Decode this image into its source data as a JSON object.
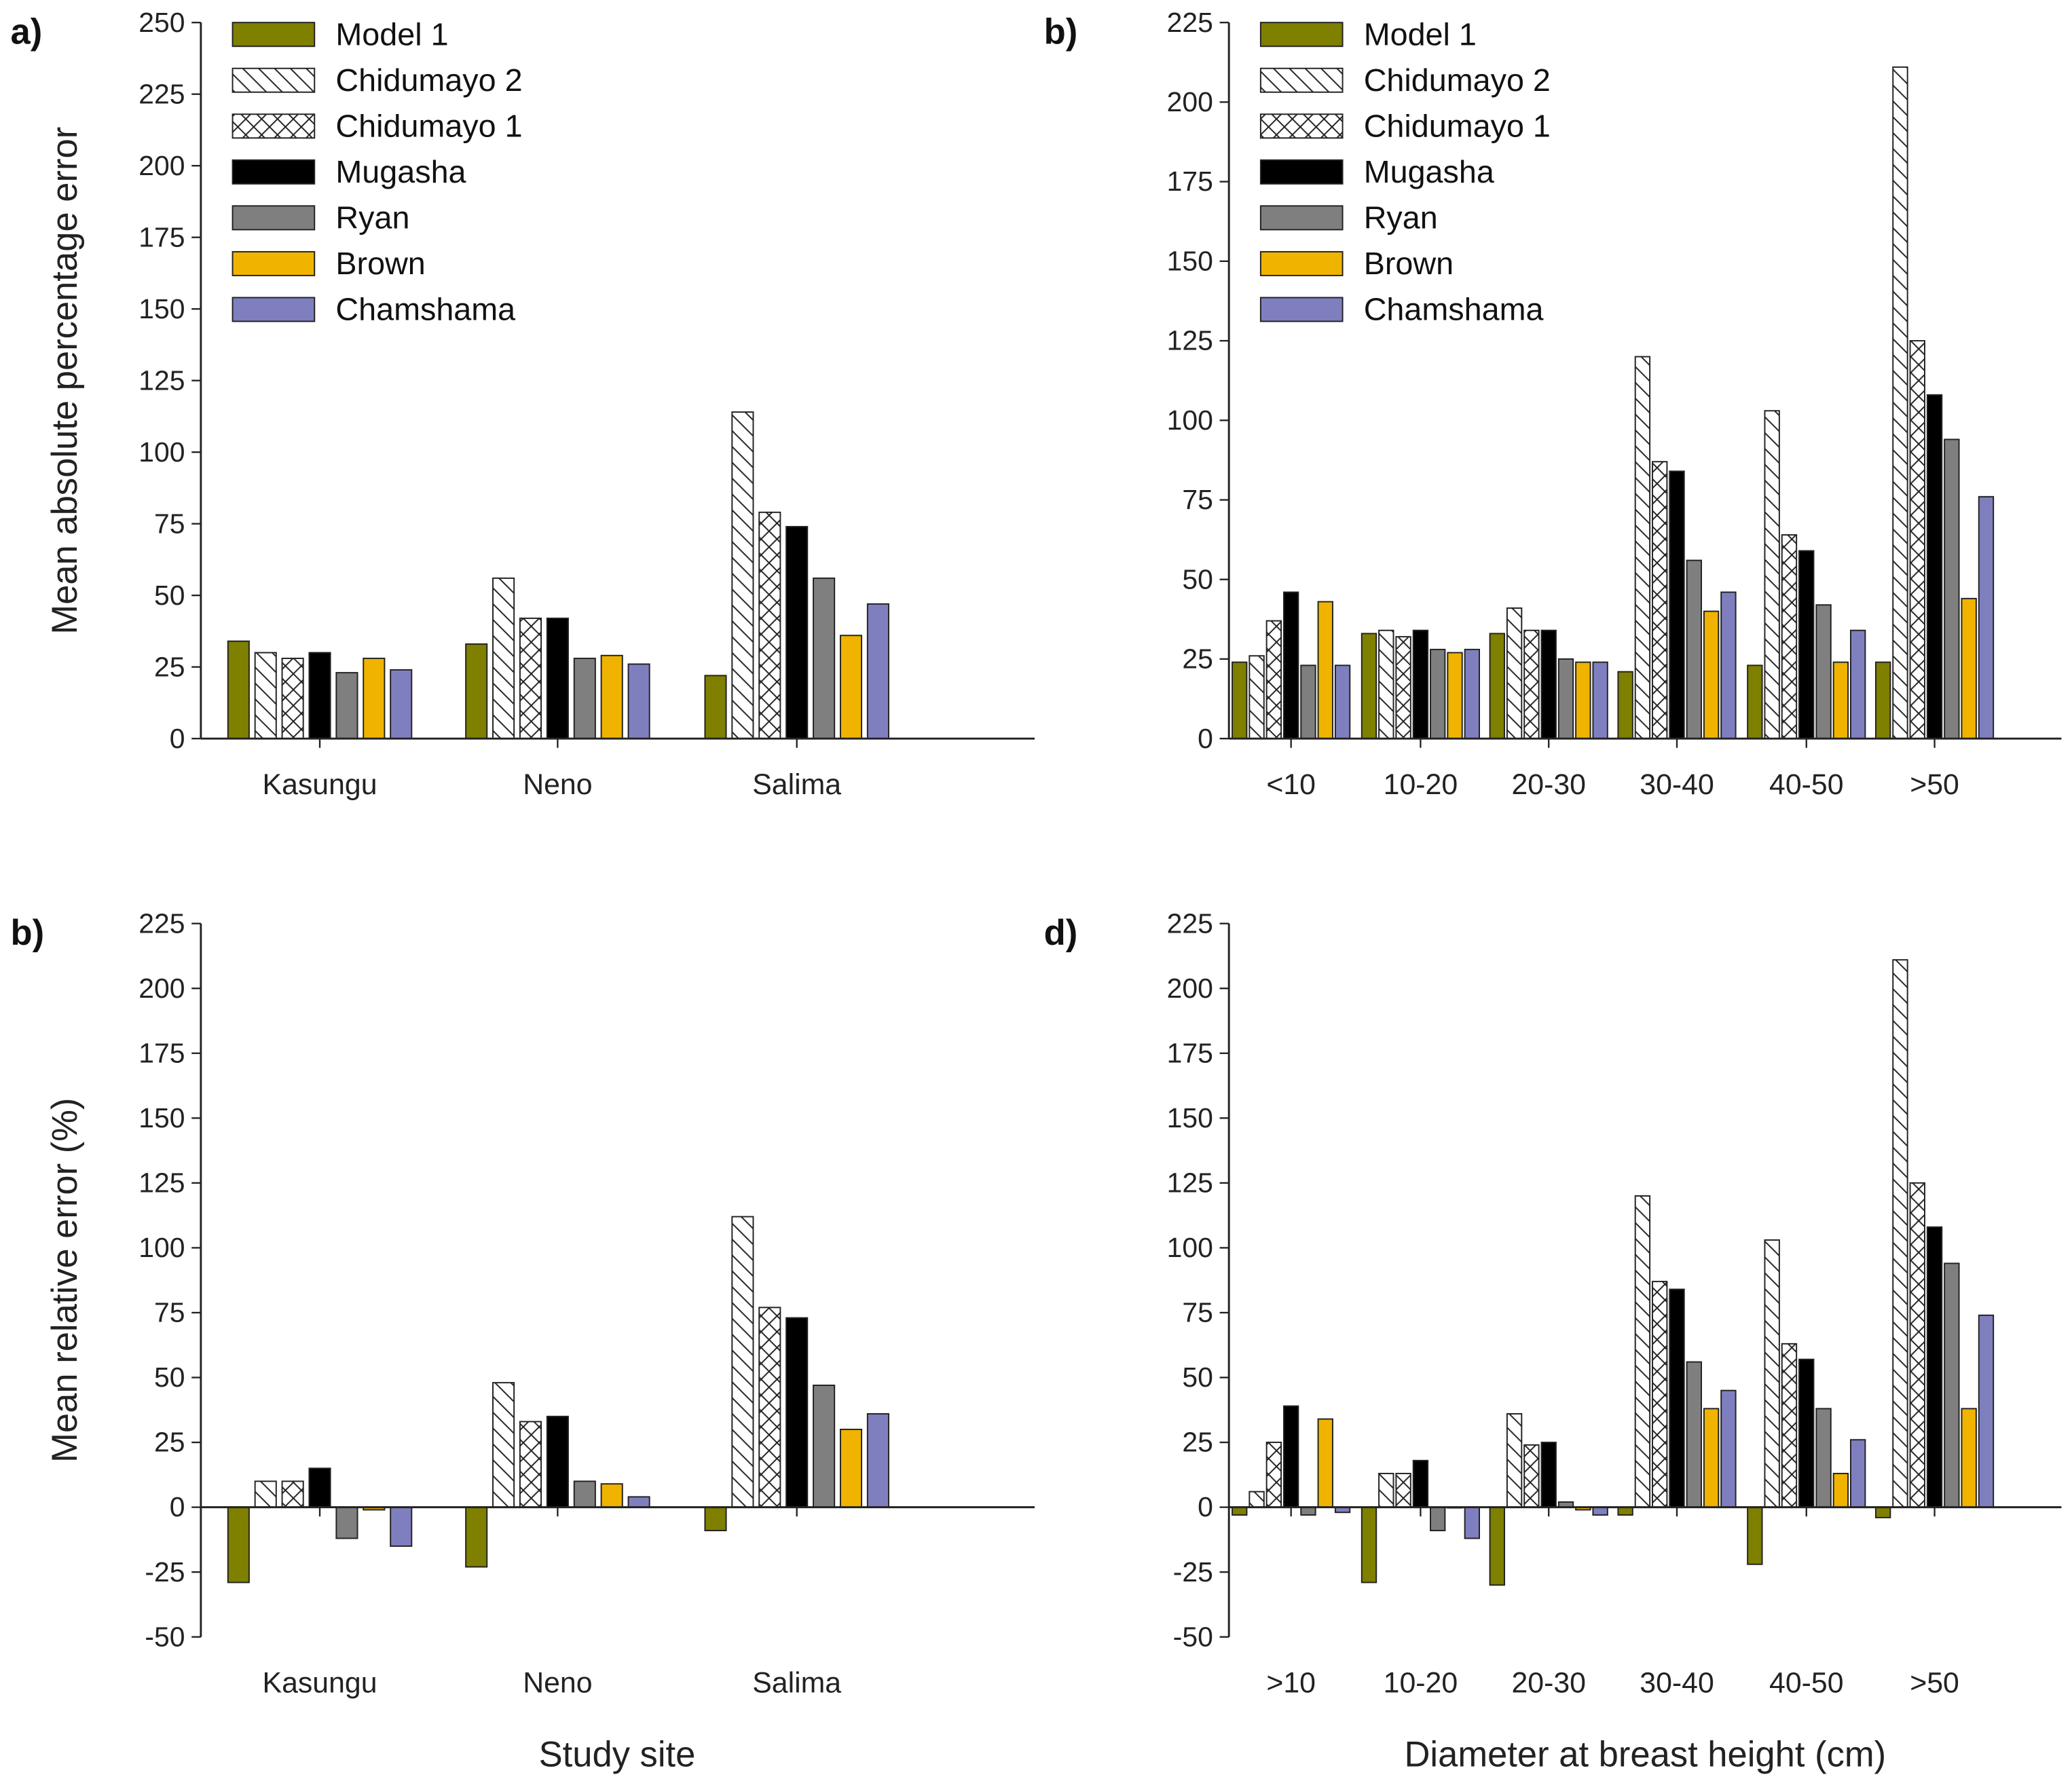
{
  "series_names": [
    "Model 1",
    "Chidumayo 2",
    "Chidumayo 1",
    "Mugasha",
    "Ryan",
    "Brown",
    "Chamshama"
  ],
  "series_styles": [
    {
      "fill": "#7f7f00",
      "pattern": "none"
    },
    {
      "fill": "#ffffff",
      "pattern": "diagonal"
    },
    {
      "fill": "#ffffff",
      "pattern": "crosshatch"
    },
    {
      "fill": "#000000",
      "pattern": "none"
    },
    {
      "fill": "#7f7f7f",
      "pattern": "none"
    },
    {
      "fill": "#f0b400",
      "pattern": "none"
    },
    {
      "fill": "#7f7fc0",
      "pattern": "none"
    }
  ],
  "xlabels": {
    "left": "Study site",
    "right": "Diameter at breast height (cm)"
  },
  "chart_data": [
    {
      "panel": "a)",
      "type": "bar",
      "ylabel": "Mean absolute percentage error",
      "xlabel": "",
      "ylim": [
        0,
        250
      ],
      "yticks": [
        0,
        25,
        50,
        75,
        100,
        125,
        150,
        175,
        200,
        225,
        250
      ],
      "categories": [
        "Kasungu",
        "Neno",
        "Salima"
      ],
      "legend": "top-left",
      "series": [
        {
          "name": "Model 1",
          "values": [
            34,
            33,
            22
          ]
        },
        {
          "name": "Chidumayo 2",
          "values": [
            30,
            56,
            114
          ]
        },
        {
          "name": "Chidumayo 1",
          "values": [
            28,
            42,
            79
          ]
        },
        {
          "name": "Mugasha",
          "values": [
            30,
            42,
            74
          ]
        },
        {
          "name": "Ryan",
          "values": [
            23,
            28,
            56
          ]
        },
        {
          "name": "Brown",
          "values": [
            28,
            29,
            36
          ]
        },
        {
          "name": "Chamshama",
          "values": [
            24,
            26,
            47
          ]
        }
      ]
    },
    {
      "panel": "b)",
      "type": "bar",
      "ylabel": "",
      "xlabel": "",
      "ylim": [
        0,
        225
      ],
      "yticks": [
        0,
        25,
        50,
        75,
        100,
        125,
        150,
        175,
        200,
        225
      ],
      "categories": [
        "<10",
        "10-20",
        "20-30",
        "30-40",
        "40-50",
        ">50"
      ],
      "legend": "top-left",
      "series": [
        {
          "name": "Model 1",
          "values": [
            24,
            33,
            33,
            21,
            23,
            24
          ]
        },
        {
          "name": "Chidumayo 2",
          "values": [
            26,
            34,
            41,
            120,
            103,
            211
          ]
        },
        {
          "name": "Chidumayo 1",
          "values": [
            37,
            32,
            34,
            87,
            64,
            125
          ]
        },
        {
          "name": "Mugasha",
          "values": [
            46,
            34,
            34,
            84,
            59,
            108
          ]
        },
        {
          "name": "Ryan",
          "values": [
            23,
            28,
            25,
            56,
            42,
            94
          ]
        },
        {
          "name": "Brown",
          "values": [
            43,
            27,
            24,
            40,
            24,
            44
          ]
        },
        {
          "name": "Chamshama",
          "values": [
            23,
            28,
            24,
            46,
            34,
            76
          ]
        }
      ]
    },
    {
      "panel": "b)",
      "type": "bar",
      "ylabel": "Mean relative error (%)",
      "xlabel": "Study site",
      "ylim": [
        -50,
        225
      ],
      "yticks": [
        -50,
        -25,
        0,
        25,
        50,
        75,
        100,
        125,
        150,
        175,
        200,
        225
      ],
      "categories": [
        "Kasungu",
        "Neno",
        "Salima"
      ],
      "series": [
        {
          "name": "Model 1",
          "values": [
            -29,
            -23,
            -9
          ]
        },
        {
          "name": "Chidumayo 2",
          "values": [
            10,
            48,
            112
          ]
        },
        {
          "name": "Chidumayo 1",
          "values": [
            10,
            33,
            77
          ]
        },
        {
          "name": "Mugasha",
          "values": [
            15,
            35,
            73
          ]
        },
        {
          "name": "Ryan",
          "values": [
            -12,
            10,
            47
          ]
        },
        {
          "name": "Brown",
          "values": [
            -1,
            9,
            30
          ]
        },
        {
          "name": "Chamshama",
          "values": [
            -15,
            4,
            36
          ]
        }
      ]
    },
    {
      "panel": "d)",
      "type": "bar",
      "ylabel": "",
      "xlabel": "Diameter at breast height (cm)",
      "ylim": [
        -50,
        225
      ],
      "yticks": [
        -50,
        -25,
        0,
        25,
        50,
        75,
        100,
        125,
        150,
        175,
        200,
        225
      ],
      "categories": [
        ">10",
        "10-20",
        "20-30",
        "30-40",
        "40-50",
        ">50"
      ],
      "series": [
        {
          "name": "Model 1",
          "values": [
            -3,
            -29,
            -30,
            -3,
            -22,
            -4
          ]
        },
        {
          "name": "Chidumayo 2",
          "values": [
            6,
            13,
            36,
            120,
            103,
            211
          ]
        },
        {
          "name": "Chidumayo 1",
          "values": [
            25,
            13,
            24,
            87,
            63,
            125
          ]
        },
        {
          "name": "Mugasha",
          "values": [
            39,
            18,
            25,
            84,
            57,
            108
          ]
        },
        {
          "name": "Ryan",
          "values": [
            -3,
            -9,
            2,
            56,
            38,
            94
          ]
        },
        {
          "name": "Brown",
          "values": [
            34,
            0,
            -1,
            38,
            13,
            38
          ]
        },
        {
          "name": "Chamshama",
          "values": [
            -2,
            -12,
            -3,
            45,
            26,
            74
          ]
        }
      ]
    }
  ]
}
